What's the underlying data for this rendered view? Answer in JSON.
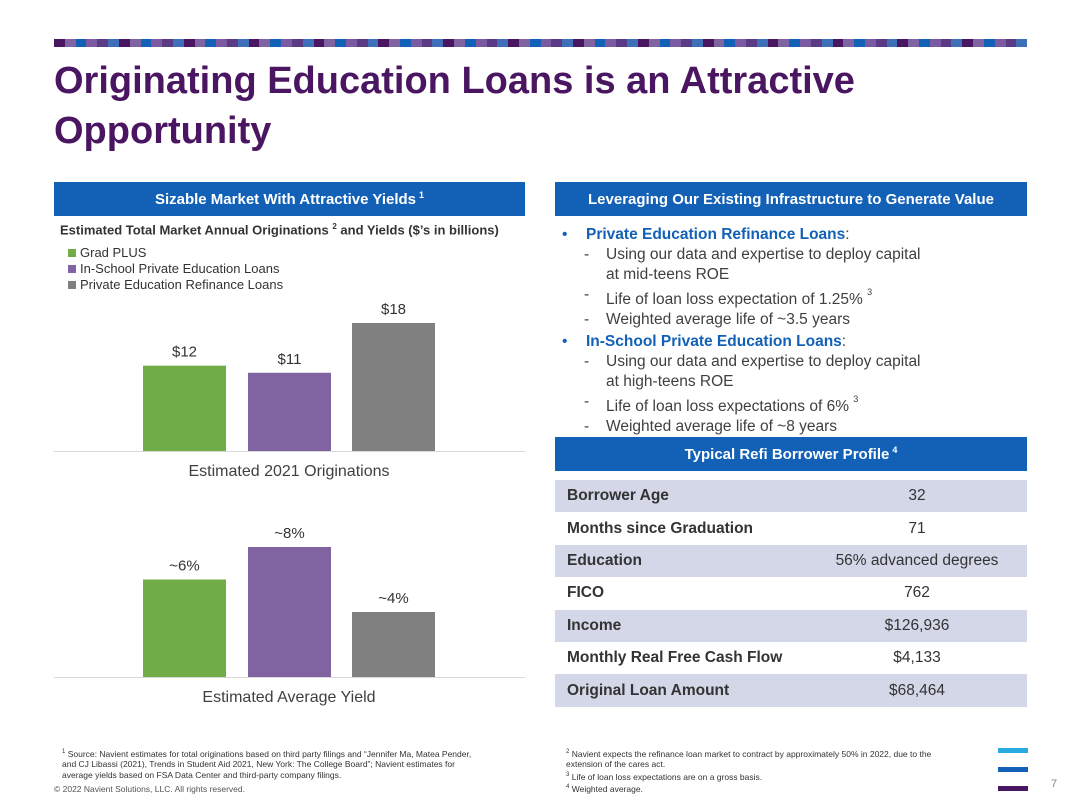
{
  "title": "Originating Education Loans is an Attractive Opportunity",
  "colors": {
    "purple_title": "#4a1561",
    "blue_header": "#1261b6",
    "grad_plus": "#70ad47",
    "in_school": "#8064a2",
    "refi": "#808080",
    "table_shade": "#d3d7e8"
  },
  "left_panel": {
    "header": "Sizable Market With Attractive Yields",
    "header_sup": "1",
    "chart_title_a": "Estimated Total Market Annual Originations",
    "chart_title_sup": "2",
    "chart_title_b": " and Yields ($’s in billions)",
    "legend": [
      "Grad PLUS",
      "In-School Private Education Loans",
      "Private Education Refinance Loans"
    ]
  },
  "chart_data": [
    {
      "type": "bar",
      "categories": [
        "Grad PLUS",
        "In-School Private Education Loans",
        "Private Education Refinance Loans"
      ],
      "values": [
        12,
        11,
        18
      ],
      "labels": [
        "$12",
        "$11",
        "$18"
      ],
      "xlabel": "Estimated 2021 Originations",
      "ylim": [
        0,
        18
      ]
    },
    {
      "type": "bar",
      "categories": [
        "Grad PLUS",
        "In-School Private Education Loans",
        "Private Education Refinance Loans"
      ],
      "values": [
        6,
        8,
        4
      ],
      "labels": [
        "~6%",
        "~8%",
        "~4%"
      ],
      "xlabel": "Estimated Average Yield",
      "ylim": [
        0,
        8
      ]
    }
  ],
  "right_panel": {
    "header": "Leveraging Our Existing Infrastructure to Generate Value",
    "bullets": [
      {
        "label": "Private Education Refinance Loans",
        "subs": [
          {
            "line1": "Using our data and expertise to deploy capital",
            "line2": "at mid-teens ROE"
          },
          {
            "line1": "Life of loan loss expectation of 1.25%",
            "sup": "3"
          },
          {
            "line1": "Weighted average life of ~3.5 years"
          }
        ]
      },
      {
        "label": "In-School Private Education Loans",
        "subs": [
          {
            "line1": "Using our data and expertise to deploy capital",
            "line2": "at high-teens ROE"
          },
          {
            "line1": "Life of loan loss expectations of 6%",
            "sup": "3"
          },
          {
            "line1": "Weighted average life of ~8 years"
          }
        ]
      }
    ],
    "profile_header": "Typical Refi Borrower Profile",
    "profile_header_sup": "4",
    "profile": [
      {
        "key": "Borrower Age",
        "value": "32"
      },
      {
        "key": "Months since Graduation",
        "value": "71"
      },
      {
        "key": "Education",
        "value": "56% advanced degrees"
      },
      {
        "key": "FICO",
        "value": "762"
      },
      {
        "key": "Income",
        "value": "$126,936"
      },
      {
        "key": "Monthly Real Free Cash Flow",
        "value": "$4,133"
      },
      {
        "key": "Original Loan Amount",
        "value": "$68,464"
      }
    ]
  },
  "footnotes": {
    "left_sup": "1",
    "left": "Source: Navient estimates for total originations based on third party filings and “Jennifer Ma, Matea Pender, and CJ Libassi (2021), Trends in Student Aid 2021, New York: The College Board”; Navient estimates for average yields based on FSA Data Center and third-party company filings.",
    "right": [
      {
        "sup": "2",
        "text": "Navient expects the refinance loan market to contract by approximately 50% in 2022, due to the extension of the cares act."
      },
      {
        "sup": "3",
        "text": "Life of loan loss expectations are on a gross basis."
      },
      {
        "sup": "4",
        "text": "Weighted average."
      }
    ]
  },
  "copyright": "© 2022 Navient Solutions, LLC. All rights reserved.",
  "page_number": "7"
}
